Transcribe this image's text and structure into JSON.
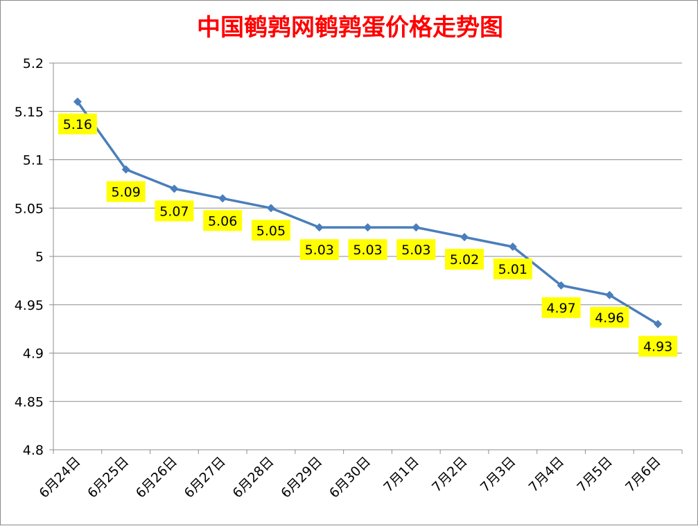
{
  "chart_data": {
    "type": "line",
    "title": "中国鹌鹑网鹌鹑蛋价格走势图",
    "categories": [
      "6月24日",
      "6月25日",
      "6月26日",
      "6月27日",
      "6月28日",
      "6月29日",
      "6月30日",
      "7月1日",
      "7月2日",
      "7月3日",
      "7月4日",
      "7月5日",
      "7月6日"
    ],
    "values": [
      5.16,
      5.09,
      5.07,
      5.06,
      5.05,
      5.03,
      5.03,
      5.03,
      5.02,
      5.01,
      4.97,
      4.96,
      4.93
    ],
    "data_labels": [
      "5.16",
      "5.09",
      "5.07",
      "5.06",
      "5.05",
      "5.03",
      "5.03",
      "5.03",
      "5.02",
      "5.01",
      "4.97",
      "4.96",
      "4.93"
    ],
    "y_ticks": [
      "5.2",
      "5.15",
      "5.1",
      "5.05",
      "5",
      "4.95",
      "4.9",
      "4.85",
      "4.8"
    ],
    "ylim": [
      4.8,
      5.2
    ],
    "grid": true,
    "legend": "none",
    "colors": {
      "line": "#4a7ebb",
      "label_bg": "#ffff00",
      "title": "#ff0000"
    }
  }
}
